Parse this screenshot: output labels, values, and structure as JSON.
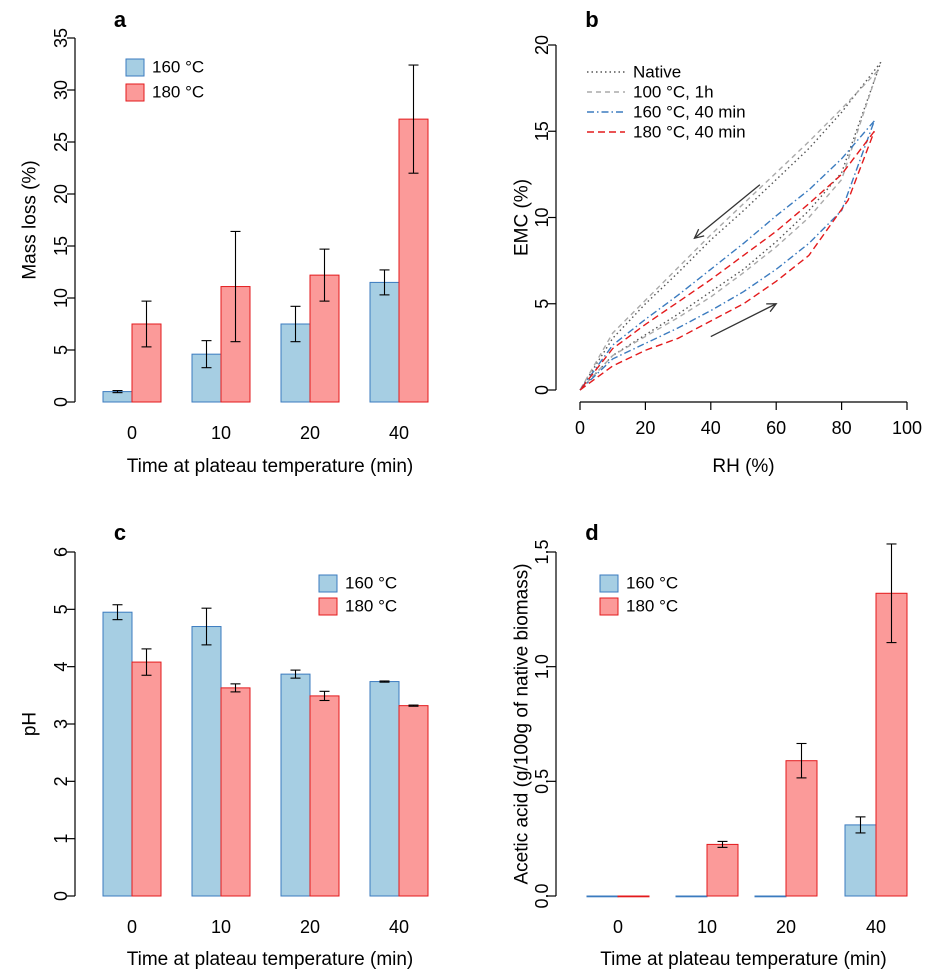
{
  "chart_data": [
    {
      "panel": "a",
      "type": "bar",
      "xlabel": "Time at plateau temperature (min)",
      "ylabel": "Mass loss (%)",
      "ylim": [
        0,
        35
      ],
      "yticks": [
        "0",
        "5",
        "10",
        "15",
        "20",
        "25",
        "30",
        "35"
      ],
      "categories": [
        "0",
        "10",
        "20",
        "40"
      ],
      "series": [
        {
          "name": "160 °C",
          "color": "#a6cee3",
          "stroke": "#3b7bbf",
          "values": [
            1.0,
            4.6,
            7.5,
            11.5
          ],
          "errors": [
            0.1,
            1.3,
            1.7,
            1.2
          ]
        },
        {
          "name": "180 °C",
          "color": "#fb9a99",
          "stroke": "#e31a1c",
          "values": [
            7.5,
            11.1,
            12.2,
            27.2
          ],
          "errors": [
            2.2,
            5.3,
            2.5,
            5.2
          ]
        }
      ],
      "legend": "top-left"
    },
    {
      "panel": "b",
      "type": "line",
      "xlabel": "RH (%)",
      "ylabel": "EMC (%)",
      "xlim": [
        0,
        100
      ],
      "ylim": [
        0,
        20
      ],
      "xticks": [
        "0",
        "20",
        "40",
        "60",
        "80",
        "100"
      ],
      "yticks": [
        "0",
        "5",
        "10",
        "15",
        "20"
      ],
      "legend": "top-left",
      "series": [
        {
          "name": "Native",
          "color": "#555555",
          "dash": "1.5,3",
          "adsorption": {
            "x": [
              0,
              10,
              20,
              30,
              40,
              50,
              60,
              70,
              80,
              92
            ],
            "y": [
              0,
              2.0,
              3.2,
              4.4,
              5.7,
              7.0,
              8.6,
              10.4,
              12.6,
              19.0
            ]
          },
          "desorption": {
            "x": [
              92,
              80,
              70,
              60,
              50,
              40,
              30,
              20,
              10,
              0
            ],
            "y": [
              19.0,
              16.1,
              14.0,
              12.2,
              10.4,
              8.7,
              6.8,
              5.0,
              3.0,
              0
            ]
          }
        },
        {
          "name": "100 °C, 1h",
          "color": "#aaaaaa",
          "dash": "5,4",
          "adsorption": {
            "x": [
              0,
              10,
              20,
              30,
              40,
              50,
              60,
              70,
              80,
              91
            ],
            "y": [
              0,
              2.0,
              3.1,
              4.2,
              5.4,
              6.8,
              8.3,
              10.0,
              12.2,
              18.5
            ]
          },
          "desorption": {
            "x": [
              91,
              80,
              70,
              60,
              50,
              40,
              30,
              20,
              10,
              0
            ],
            "y": [
              18.5,
              16.3,
              14.4,
              12.6,
              10.8,
              9.0,
              7.1,
              5.2,
              3.3,
              0
            ]
          }
        },
        {
          "name": "160 °C, 40 min",
          "color": "#3b7bbf",
          "dash": "7,3,1.5,3",
          "adsorption": {
            "x": [
              0,
              10,
              20,
              30,
              40,
              50,
              60,
              70,
              80,
              90
            ],
            "y": [
              0,
              1.8,
              2.7,
              3.6,
              4.6,
              5.7,
              7.0,
              8.5,
              10.4,
              15.6
            ]
          },
          "desorption": {
            "x": [
              90,
              80,
              70,
              60,
              50,
              40,
              30,
              20,
              10,
              0
            ],
            "y": [
              15.6,
              13.4,
              11.6,
              10.1,
              8.5,
              7.0,
              5.5,
              4.1,
              2.6,
              0
            ]
          }
        },
        {
          "name": "180 °C, 40 min",
          "color": "#e31a1c",
          "dash": "7,4",
          "adsorption": {
            "x": [
              0,
              10,
              20,
              30,
              40,
              50,
              60,
              70,
              82,
              90
            ],
            "y": [
              0,
              1.4,
              2.3,
              3.0,
              4.0,
              5.0,
              6.3,
              7.8,
              11.0,
              15.0
            ]
          },
          "desorption": {
            "x": [
              90,
              80,
              70,
              60,
              50,
              40,
              30,
              20,
              10,
              0
            ],
            "y": [
              15.0,
              12.5,
              10.8,
              9.2,
              7.8,
              6.4,
              5.1,
              3.8,
              2.4,
              0
            ]
          }
        }
      ],
      "arrows": [
        {
          "name": "desorption-arrow",
          "from": [
            55,
            11.9
          ],
          "to": [
            35,
            8.8
          ]
        },
        {
          "name": "adsorption-arrow",
          "from": [
            40,
            3.1
          ],
          "to": [
            60,
            5.0
          ]
        }
      ]
    },
    {
      "panel": "c",
      "type": "bar",
      "xlabel": "Time at plateau temperature (min)",
      "ylabel": "pH",
      "ylim": [
        0,
        6
      ],
      "yticks": [
        "0",
        "1",
        "2",
        "3",
        "4",
        "5",
        "6"
      ],
      "categories": [
        "0",
        "10",
        "20",
        "40"
      ],
      "series": [
        {
          "name": "160 °C",
          "color": "#a6cee3",
          "stroke": "#3b7bbf",
          "values": [
            4.95,
            4.7,
            3.87,
            3.74
          ],
          "errors": [
            0.13,
            0.32,
            0.07,
            0.01
          ]
        },
        {
          "name": "180 °C",
          "color": "#fb9a99",
          "stroke": "#e31a1c",
          "values": [
            4.08,
            3.63,
            3.49,
            3.32
          ],
          "errors": [
            0.23,
            0.07,
            0.08,
            0.01
          ]
        }
      ],
      "legend": "top-right"
    },
    {
      "panel": "d",
      "type": "bar",
      "xlabel": "Time at plateau temperature (min)",
      "ylabel": "Acetic acid (g/100g of native biomass)",
      "ylim": [
        0,
        1.5
      ],
      "yticks": [
        "0.0",
        "0.5",
        "1.0",
        "1.5"
      ],
      "categories": [
        "0",
        "10",
        "20",
        "40"
      ],
      "series": [
        {
          "name": "160 °C",
          "color": "#a6cee3",
          "stroke": "#3b7bbf",
          "values": [
            0.0,
            0.0,
            0.0,
            0.31
          ],
          "errors": [
            0,
            0,
            0,
            0.035
          ]
        },
        {
          "name": "180 °C",
          "color": "#fb9a99",
          "stroke": "#e31a1c",
          "values": [
            0.0,
            0.225,
            0.59,
            1.32
          ],
          "errors": [
            0,
            0.013,
            0.075,
            0.215
          ]
        }
      ],
      "legend": "top-left"
    }
  ]
}
